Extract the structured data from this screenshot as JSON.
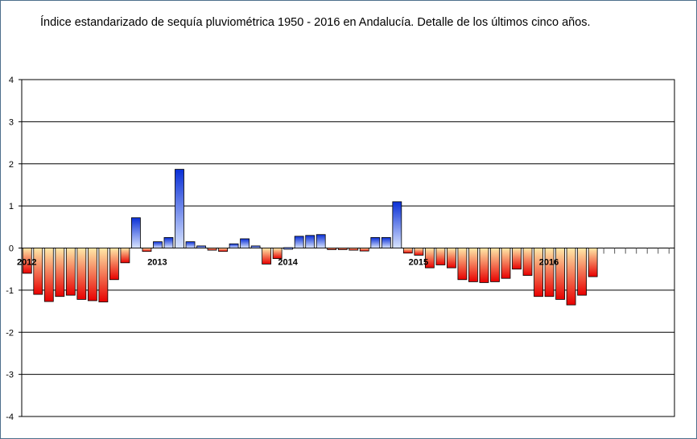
{
  "title": "Índice estandarizado de sequía pluviométrica 1950 - 2016 en Andalucía. Detalle de los últimos cinco años.",
  "chart_data": {
    "type": "bar",
    "title": "Índice estandarizado de sequía pluviométrica 1950 - 2016 en Andalucía. Detalle de los últimos cinco años.",
    "xlabel": "",
    "ylabel": "",
    "ylim": [
      -4,
      4
    ],
    "yticks": [
      "4",
      "3",
      "2",
      "1",
      "0",
      "-1",
      "-2",
      "-3",
      "-4"
    ],
    "year_labels": [
      {
        "label": "2012",
        "index": 0
      },
      {
        "label": "2013",
        "index": 12
      },
      {
        "label": "2014",
        "index": 24
      },
      {
        "label": "2015",
        "index": 36
      },
      {
        "label": "2016",
        "index": 48
      }
    ],
    "grid": true,
    "legend": "none",
    "colors": {
      "positive_top": "#0a2fd6",
      "positive_bottom": "#d8e4ff",
      "negative_top": "#ffe9a8",
      "negative_bottom": "#e80000",
      "empty_mark": "#555555"
    },
    "values": [
      -0.6,
      -1.1,
      -1.27,
      -1.15,
      -1.12,
      -1.22,
      -1.25,
      -1.28,
      -0.75,
      -0.35,
      0.72,
      -0.08,
      0.15,
      0.25,
      1.87,
      0.15,
      0.05,
      -0.05,
      -0.08,
      0.1,
      0.22,
      0.05,
      -0.38,
      -0.25,
      0.01,
      0.28,
      0.3,
      0.32,
      -0.03,
      -0.03,
      -0.05,
      -0.07,
      0.25,
      0.25,
      1.1,
      -0.12,
      -0.17,
      -0.47,
      -0.4,
      -0.47,
      -0.75,
      -0.8,
      -0.82,
      -0.8,
      -0.72,
      -0.5,
      -0.65,
      -1.15,
      -1.15,
      -1.22,
      -1.35,
      -1.12,
      -0.68,
      null,
      null,
      null,
      null,
      null,
      null,
      null
    ]
  }
}
